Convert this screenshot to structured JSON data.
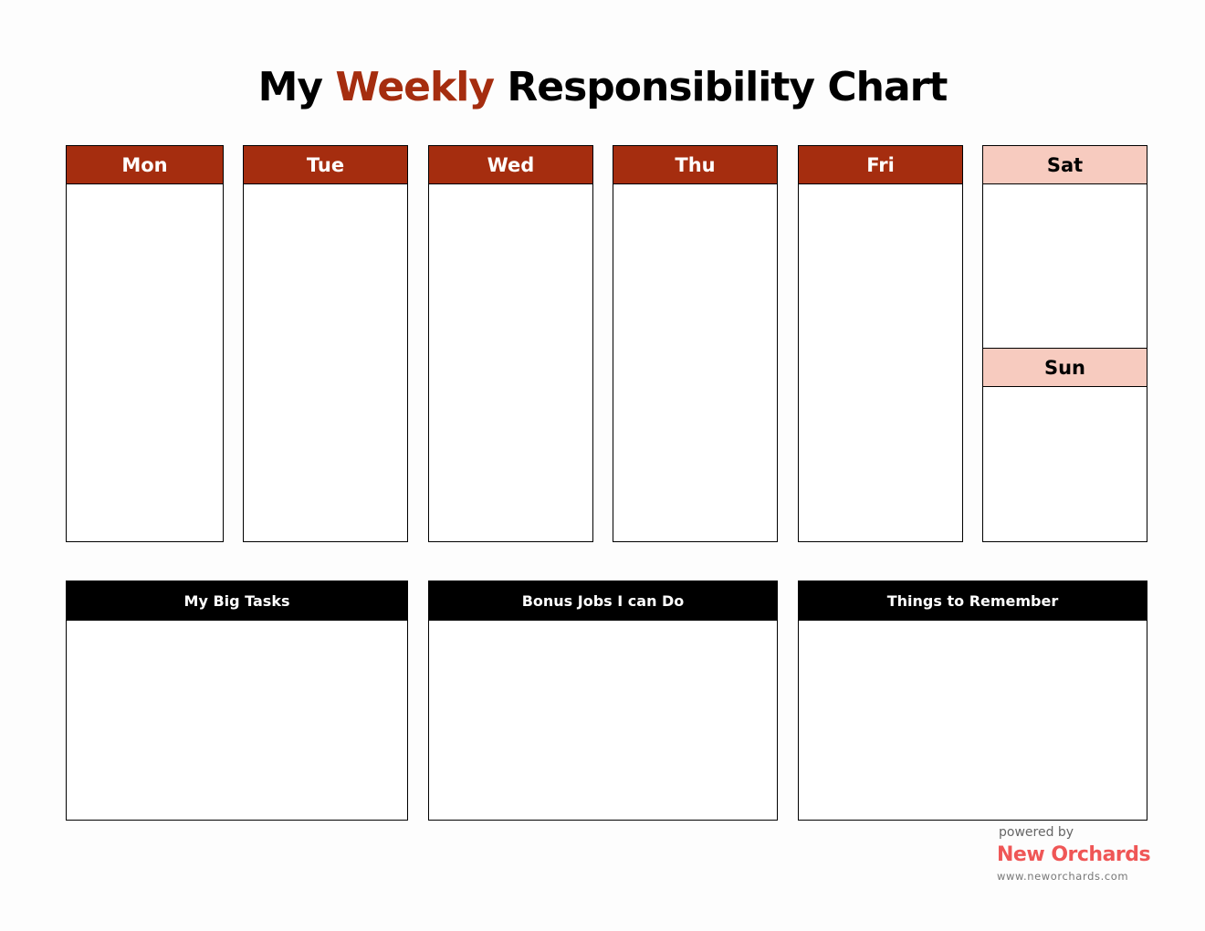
{
  "title": {
    "part1": "My ",
    "part2": "Weekly",
    "part3": " Responsibility Chart"
  },
  "days": [
    "Mon",
    "Tue",
    "Wed",
    "Thu",
    "Fri"
  ],
  "weekend": [
    "Sat",
    "Sun"
  ],
  "sections": [
    "My Big Tasks",
    "Bonus Jobs I can Do",
    "Things to Remember"
  ],
  "brand": {
    "powered": "powered by",
    "name": "New Orchards",
    "url": "www.neworchards.com"
  },
  "colors": {
    "accent": "#a52d0f",
    "weekend": "#f7cbbf",
    "brand": "#ef5656"
  }
}
